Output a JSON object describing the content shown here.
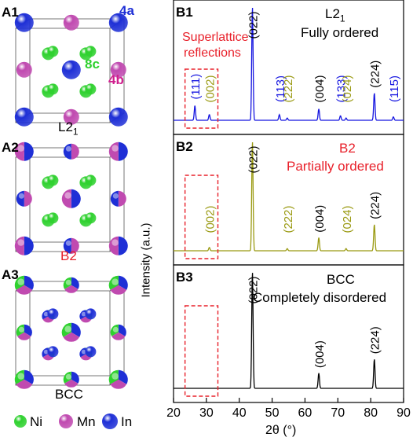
{
  "left_panels": {
    "a1": {
      "tag": "A1",
      "site_4a": "4a",
      "site_8c": "8c",
      "site_4b": "4b",
      "structure": "L2",
      "structure_sub": "1"
    },
    "a2": {
      "tag": "A2",
      "structure": "B2"
    },
    "a3": {
      "tag": "A3",
      "structure": "BCC"
    },
    "legend": [
      {
        "label": "Ni",
        "color": "#2fd12f"
      },
      {
        "label": "Mn",
        "color": "#c04ab0"
      },
      {
        "label": "In",
        "color": "#1e2fd6"
      }
    ]
  },
  "colors": {
    "ni": "#2fd12f",
    "mn": "#c04ab0",
    "in": "#1e2fd6",
    "red": "#e8202a",
    "olive": "#9a9a12",
    "blue": "#1515e0"
  },
  "chart_data": {
    "type": "line",
    "xlabel": "2θ (°)",
    "ylabel": "Intensity (a.u.)",
    "xlim": [
      20,
      90
    ],
    "xticks": [
      20,
      30,
      40,
      50,
      60,
      70,
      80,
      90
    ],
    "panels": [
      {
        "tag": "B1",
        "title": "L2",
        "title_sub": "1",
        "subtitle": "Fully ordered",
        "annotation_line1": "Superlattice",
        "annotation_line2": "reflections",
        "line_color": "#1515e0",
        "box_range": [
          23.5,
          33.5
        ],
        "peaks": [
          {
            "x": 26.5,
            "label": "(111)",
            "rel_height": 0.13,
            "label_color": "#1515e0"
          },
          {
            "x": 30.9,
            "label": "(002)",
            "rel_height": 0.05,
            "label_color": "#9a9a12"
          },
          {
            "x": 44.0,
            "label": "(022)",
            "rel_height": 1.0,
            "label_color": "#000000"
          },
          {
            "x": 52.2,
            "label": "(113)",
            "rel_height": 0.05,
            "label_color": "#1515e0"
          },
          {
            "x": 54.6,
            "label": "(222)",
            "rel_height": 0.02,
            "label_color": "#9a9a12"
          },
          {
            "x": 64.2,
            "label": "(004)",
            "rel_height": 0.1,
            "label_color": "#000000"
          },
          {
            "x": 70.8,
            "label": "(133)",
            "rel_height": 0.04,
            "label_color": "#1515e0"
          },
          {
            "x": 72.5,
            "label": "(024)",
            "rel_height": 0.02,
            "label_color": "#9a9a12"
          },
          {
            "x": 81.1,
            "label": "(224)",
            "rel_height": 0.24,
            "label_color": "#000000"
          },
          {
            "x": 86.9,
            "label": "(115)",
            "rel_height": 0.03,
            "label_color": "#1515e0"
          }
        ]
      },
      {
        "tag": "B2",
        "title": "B2",
        "subtitle": "Partially ordered",
        "line_color": "#9a9a12",
        "box_range": [
          23.5,
          33.5
        ],
        "peaks": [
          {
            "x": 30.9,
            "label": "(002)",
            "rel_height": 0.03,
            "label_color": "#9a9a12"
          },
          {
            "x": 44.0,
            "label": "(022)",
            "rel_height": 1.0,
            "label_color": "#000000"
          },
          {
            "x": 54.6,
            "label": "(222)",
            "rel_height": 0.02,
            "label_color": "#9a9a12"
          },
          {
            "x": 64.2,
            "label": "(004)",
            "rel_height": 0.12,
            "label_color": "#000000"
          },
          {
            "x": 72.5,
            "label": "(024)",
            "rel_height": 0.02,
            "label_color": "#9a9a12"
          },
          {
            "x": 81.1,
            "label": "(224)",
            "rel_height": 0.24,
            "label_color": "#000000"
          }
        ]
      },
      {
        "tag": "B3",
        "title": "BCC",
        "subtitle": "Completely disordered",
        "line_color": "#000000",
        "box_range": [
          23.5,
          33.5
        ],
        "peaks": [
          {
            "x": 44.0,
            "label": "(022)",
            "rel_height": 1.0,
            "label_color": "#000000"
          },
          {
            "x": 64.2,
            "label": "(004)",
            "rel_height": 0.13,
            "label_color": "#000000"
          },
          {
            "x": 81.1,
            "label": "(224)",
            "rel_height": 0.25,
            "label_color": "#000000"
          }
        ]
      }
    ]
  }
}
